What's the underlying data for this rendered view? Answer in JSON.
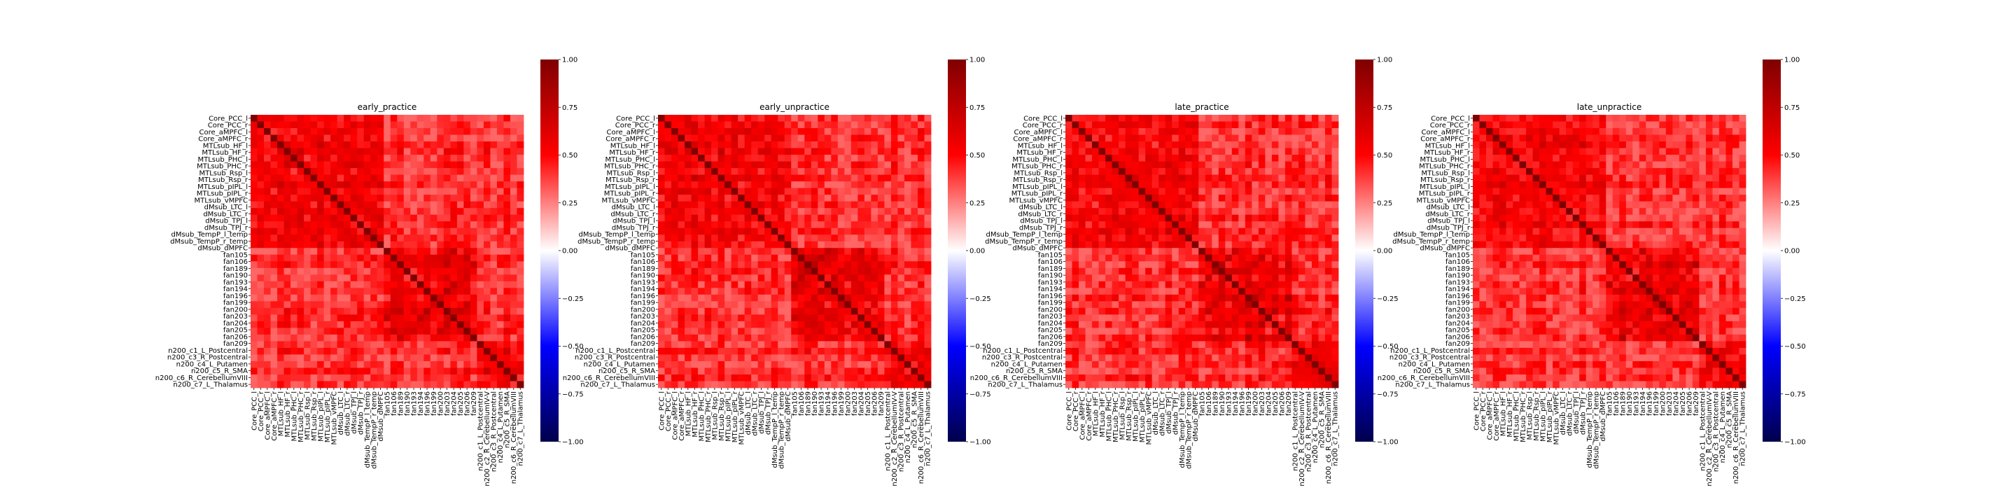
{
  "chart_data": {
    "type": "heatmap",
    "row_labels": [
      "Core_PCC_l",
      "Core_PCC_r",
      "Core_aMPFC_l",
      "Core_aMPFC_r",
      "MTLsub_HF_l",
      "MTLsub_HF_r",
      "MTLsub_PHC_l",
      "MTLsub_PHC_r",
      "MTLsub_Rsp_l",
      "MTLsub_Rsp_r",
      "MTLsub_pIPL_l",
      "MTLsub_pIPL_r",
      "MTLsub_vMPFC",
      "dMsub_LTC_l",
      "dMsub_LTC_r",
      "dMsub_TPJ_l",
      "dMsub_TPJ_r",
      "dMsub_TempP_l_temp",
      "dMsub_TempP_r_temp",
      "dMsub_dMPFC",
      "fan105",
      "fan106",
      "fan189",
      "fan190",
      "fan193",
      "fan194",
      "fan196",
      "fan199",
      "fan200",
      "fan203",
      "fan204",
      "fan205",
      "fan206",
      "fan209",
      "n200_c1_L_Postcentral",
      "n200_c2_R_CerebellumIV-V",
      "n200_c3_R_Postcentral",
      "n200_c4_L_Putamen",
      "n200_c5_R_SMA",
      "n200_c6_R_CerebellumVIII",
      "n200_c7_L_Thalamus"
    ],
    "row_labels_drawn": [
      "Core_PCC_l",
      "Core_PCC_r",
      "Core_aMPFC_l",
      "Core_aMPFC_r",
      "MTLsub_HF_l",
      "MTLsub_HF_r",
      "MTLsub_PHC_l",
      "MTLsub_PHC_r",
      "MTLsub_Rsp_l",
      "MTLsub_Rsp_r",
      "MTLsub_pIPL_l",
      "MTLsub_pIPL_r",
      "MTLsub_vMPFC",
      "dMsub_LTC_l",
      "dMsub_LTC_r",
      "dMsub_TPJ_l",
      "dMsub_TPJ_r",
      "dMsub_TempP_l_temp",
      "dMsub_TempP_r_temp",
      "dMsub_dMPFC",
      "fan105",
      "fan106",
      "fan189",
      "fan190",
      "fan193",
      "fan194",
      "fan196",
      "fan199",
      "fan200",
      "fan203",
      "fan204",
      "fan205",
      "fan206",
      "fan209",
      "n200_c1_L_Postcentral",
      "n200_c3_R_Postcentral",
      "n200_c4_L_Putamen",
      "n200_c5_R_SMA",
      "n200_c6_R_CerebellumVIII",
      "n200_c7_L_Thalamus"
    ],
    "panels": [
      {
        "title": "early_practice",
        "colorbar_ticks": [
          "1.00",
          "0.75",
          "0.50",
          "0.25",
          "0.00",
          "−0.25",
          "−0.50",
          "−0.75",
          "−1.00"
        ],
        "vmin": -1,
        "vmax": 1,
        "seed": 11
      },
      {
        "title": "early_unpractice",
        "colorbar_ticks": [
          "1.00",
          "0.75",
          "0.50",
          "0.25",
          "0.00",
          "−0.25",
          "−0.50",
          "−0.75",
          "−1.00"
        ],
        "vmin": -1,
        "vmax": 1,
        "seed": 23
      },
      {
        "title": "late_practice",
        "colorbar_ticks": [
          "1.00",
          "0.75",
          "0.50",
          "0.25",
          "0.00",
          "−0.25",
          "−0.50",
          "−0.75",
          "−1.00"
        ],
        "vmin": -1,
        "vmax": 1,
        "seed": 37
      },
      {
        "title": "late_unpractice",
        "colorbar_ticks": [
          "1.00",
          "0.75",
          "0.50",
          "0.25",
          "0.00",
          "−0.25",
          "−0.50",
          "−0.75",
          "−1.00"
        ],
        "vmin": -1,
        "vmax": 1,
        "seed": 53
      }
    ],
    "colormap": "seismic",
    "diagonal_value": 1.0,
    "typical_offdiagonal_range": [
      0.35,
      0.95
    ]
  }
}
